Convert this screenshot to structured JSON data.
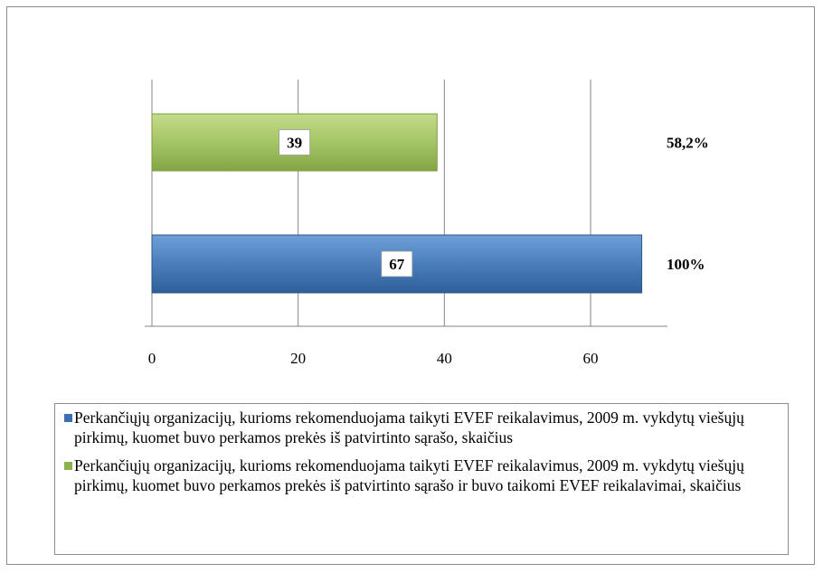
{
  "chart_data": {
    "type": "bar",
    "orientation": "horizontal",
    "xlim": [
      0,
      70
    ],
    "xticks": [
      0,
      20,
      40,
      60
    ],
    "grid": true,
    "legend_position": "bottom",
    "bars": [
      {
        "value": 39,
        "data_label": "39",
        "side_label": "58,2%",
        "color": "#9bbb59",
        "legend": "Perkančiųjų organizacijų, kurioms rekomenduojama taikyti EVEF reikalavimus, 2009 m. vykdytų viešųjų pirkimų, kuomet buvo perkamos prekės iš patvirtinto sąrašo ir buvo taikomi EVEF reikalavimai, skaičius"
      },
      {
        "value": 67,
        "data_label": "67",
        "side_label": "100%",
        "color": "#4f81bd",
        "legend": "Perkančiųjų organizacijų, kurioms rekomenduojama taikyti EVEF reikalavimus, 2009 m. vykdytų viešųjų pirkimų, kuomet buvo perkamos prekės iš patvirtinto sąrašo, skaičius"
      }
    ]
  },
  "legend_items": [
    {
      "color": "#4f81bd",
      "text": "Perkančiųjų organizacijų, kurioms rekomenduojama taikyti EVEF reikalavimus, 2009 m. vykdytų viešųjų pirkimų, kuomet buvo perkamos prekės iš patvirtinto sąrašo, skaičius"
    },
    {
      "color": "#9bbb59",
      "text": "Perkančiųjų organizacijų, kurioms rekomenduojama taikyti EVEF reikalavimus, 2009 m. vykdytų viešųjų pirkimų, kuomet buvo perkamos prekės iš patvirtinto sąrašo ir buvo taikomi EVEF reikalavimai, skaičius"
    }
  ]
}
